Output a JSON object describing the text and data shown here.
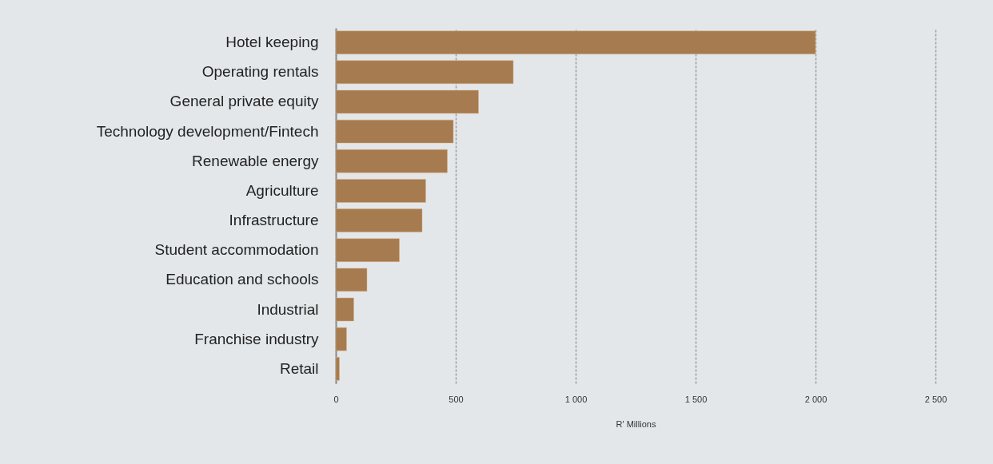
{
  "chart_data": {
    "type": "bar",
    "orientation": "horizontal",
    "xlabel": "R' Millions",
    "categories": [
      "Hotel keeping",
      "Operating rentals",
      "General private equity",
      "Technology development/Fintech",
      "Renewable energy",
      "Agriculture",
      "Infrastructure",
      "Student accommodation",
      "Education and schools",
      "Industrial",
      "Franchise industry",
      "Retail"
    ],
    "values": [
      2000,
      740,
      595,
      490,
      465,
      375,
      360,
      265,
      130,
      75,
      45,
      15
    ],
    "color": "#a67b4f",
    "xlim": [
      0,
      2500
    ],
    "xticks": [
      0,
      500,
      {
        "value": 1000,
        "label": "1 000"
      },
      {
        "value": 1500,
        "label": "1 500"
      },
      {
        "value": 2000,
        "label": "2 000"
      },
      {
        "value": 2500,
        "label": "2 500"
      }
    ],
    "grid": "x"
  }
}
